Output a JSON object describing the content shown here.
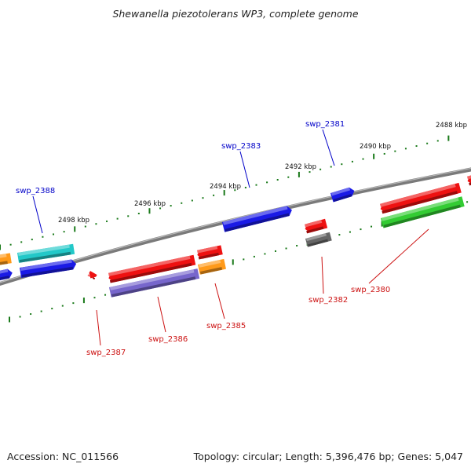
{
  "title": "Shewanella piezotolerans WP3, complete genome",
  "footer": {
    "accession": "Accession: NC_011566",
    "topology": "Topology: circular; Length: 5,396,476 bp; Genes: 5,047"
  },
  "colors": {
    "backbone": "#7a7a7a",
    "tick": "#1a7a1a",
    "label_forward": "#0000c8",
    "label_reverse": "#cc1111"
  },
  "kbp_labels": [
    "2488 kbp",
    "2490 kbp",
    "2492 kbp",
    "2494 kbp",
    "2496 kbp",
    "2498 kbp"
  ],
  "gene_labels": [
    {
      "text": "swp_2381",
      "strand": "forward"
    },
    {
      "text": "swp_2383",
      "strand": "forward"
    },
    {
      "text": "swp_2388",
      "strand": "forward"
    },
    {
      "text": "swp_2380",
      "strand": "reverse"
    },
    {
      "text": "swp_2382",
      "strand": "reverse"
    },
    {
      "text": "swp_2385",
      "strand": "reverse"
    },
    {
      "text": "swp_2386",
      "strand": "reverse"
    },
    {
      "text": "swp_2387",
      "strand": "reverse"
    }
  ],
  "features": [
    {
      "name": "swp_2381",
      "color": "#1a1ae6"
    },
    {
      "name": "swp_2383",
      "color": "#1a1ae6"
    },
    {
      "name": "swp_2388",
      "color": "#1a1ae6"
    },
    {
      "name": "teal-gene",
      "color": "#22c8c8"
    },
    {
      "name": "orange-gene-left",
      "color": "#ff9a1a"
    },
    {
      "name": "blue-gene-left-edge",
      "color": "#1a1ae6"
    },
    {
      "name": "red-gene-upper-right",
      "color": "#ee1111"
    },
    {
      "name": "red-gene-edge-right",
      "color": "#ee1111"
    },
    {
      "name": "red-gene-middle",
      "color": "#ee1111"
    },
    {
      "name": "red-gene-small",
      "color": "#ee1111"
    },
    {
      "name": "swp_2382",
      "color": "#ee1111"
    },
    {
      "name": "gray-gene",
      "color": "#666666"
    },
    {
      "name": "swp_2380",
      "color": "#33cc33"
    },
    {
      "name": "swp_2386",
      "color": "#7766cc"
    },
    {
      "name": "swp_2385",
      "color": "#ff9a1a"
    },
    {
      "name": "swp_2387",
      "color": "#ee1111"
    }
  ]
}
